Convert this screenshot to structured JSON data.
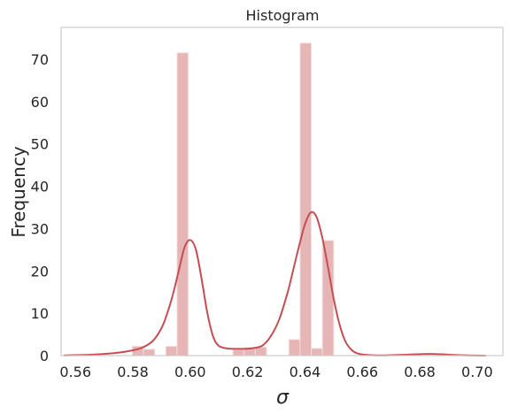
{
  "chart_data": {
    "type": "bar",
    "title": "Histogram",
    "xlabel": "σ",
    "ylabel": "Frequency",
    "xlim": [
      0.555,
      0.709
    ],
    "ylim": [
      0,
      77.5
    ],
    "xticks": [
      0.56,
      0.58,
      0.6,
      0.62,
      0.64,
      0.66,
      0.68,
      0.7
    ],
    "xtick_labels": [
      "0.56",
      "0.58",
      "0.60",
      "0.62",
      "0.64",
      "0.66",
      "0.68",
      "0.70"
    ],
    "yticks": [
      0,
      10,
      20,
      30,
      40,
      50,
      60,
      70
    ],
    "ytick_labels": [
      "0",
      "10",
      "20",
      "30",
      "40",
      "50",
      "60",
      "70"
    ],
    "grid": false,
    "series": [
      {
        "name": "histogram",
        "kind": "bars",
        "color": "#e6b5b6",
        "edge_color": "#f2dede",
        "bins": [
          {
            "x0": 0.5798,
            "x1": 0.5837,
            "value": 2.2
          },
          {
            "x0": 0.5837,
            "x1": 0.5876,
            "value": 1.5
          },
          {
            "x0": 0.5876,
            "x1": 0.5915,
            "value": 0
          },
          {
            "x0": 0.5915,
            "x1": 0.5954,
            "value": 2.2
          },
          {
            "x0": 0.5954,
            "x1": 0.5993,
            "value": 71.5
          },
          {
            "x0": 0.5993,
            "x1": 0.6032,
            "value": 0
          },
          {
            "x0": 0.6032,
            "x1": 0.6071,
            "value": 0
          },
          {
            "x0": 0.6071,
            "x1": 0.611,
            "value": 0
          },
          {
            "x0": 0.611,
            "x1": 0.6149,
            "value": 0
          },
          {
            "x0": 0.6149,
            "x1": 0.6188,
            "value": 1.4
          },
          {
            "x0": 0.6188,
            "x1": 0.6227,
            "value": 1.9
          },
          {
            "x0": 0.6227,
            "x1": 0.6266,
            "value": 2.0
          },
          {
            "x0": 0.6266,
            "x1": 0.6305,
            "value": 0
          },
          {
            "x0": 0.6305,
            "x1": 0.6344,
            "value": 0
          },
          {
            "x0": 0.6344,
            "x1": 0.6383,
            "value": 3.8
          },
          {
            "x0": 0.6383,
            "x1": 0.6422,
            "value": 73.8
          },
          {
            "x0": 0.6422,
            "x1": 0.6461,
            "value": 1.7
          },
          {
            "x0": 0.6461,
            "x1": 0.65,
            "value": 27.2
          }
        ]
      },
      {
        "name": "kde",
        "kind": "line",
        "color": "#c44e52",
        "x": [
          0.556,
          0.565,
          0.572,
          0.578,
          0.583,
          0.587,
          0.59,
          0.592,
          0.594,
          0.596,
          0.598,
          0.6,
          0.602,
          0.604,
          0.606,
          0.608,
          0.61,
          0.613,
          0.617,
          0.621,
          0.625,
          0.628,
          0.631,
          0.634,
          0.636,
          0.638,
          0.64,
          0.642,
          0.644,
          0.646,
          0.648,
          0.65,
          0.652,
          0.654,
          0.656,
          0.658,
          0.661,
          0.665,
          0.67,
          0.675,
          0.68,
          0.684,
          0.688,
          0.692,
          0.697,
          0.703
        ],
        "y": [
          0.05,
          0.2,
          0.5,
          1.0,
          1.8,
          3.5,
          6.5,
          10.0,
          14.5,
          20.0,
          25.5,
          27.3,
          25.0,
          18.0,
          10.0,
          4.5,
          2.3,
          1.7,
          1.6,
          1.7,
          2.3,
          4.5,
          8.5,
          15.0,
          20.5,
          26.0,
          31.0,
          33.8,
          32.8,
          28.0,
          21.0,
          13.5,
          7.5,
          3.5,
          1.5,
          0.6,
          0.2,
          0.05,
          0.1,
          0.2,
          0.35,
          0.4,
          0.3,
          0.15,
          0.05,
          0.0
        ]
      }
    ]
  }
}
